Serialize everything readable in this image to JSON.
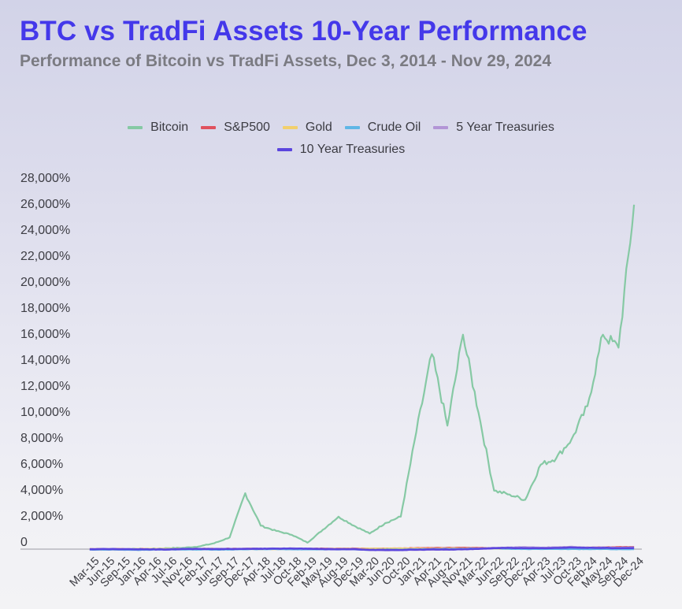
{
  "header": {
    "title": "BTC vs TradFi Assets 10-Year Performance",
    "subtitle": "Performance of Bitcoin vs TradFi Assets, Dec 3, 2014 - Nov 29, 2024"
  },
  "legend": {
    "rows": [
      [
        {
          "label": "Bitcoin",
          "color": "#86c9a4"
        },
        {
          "label": "S&P500",
          "color": "#e0515e"
        },
        {
          "label": "Gold",
          "color": "#f2cf6d"
        },
        {
          "label": "Crude Oil",
          "color": "#5fb6e6"
        },
        {
          "label": "5 Year Treasuries",
          "color": "#b295d6"
        }
      ],
      [
        {
          "label": "10 Year Treasuries",
          "color": "#5b45de"
        }
      ]
    ]
  },
  "chart_data": {
    "type": "line",
    "title": "BTC vs TradFi Assets 10-Year Performance",
    "subtitle": "Performance of Bitcoin vs TradFi Assets, Dec 3, 2014 - Nov 29, 2024",
    "xlabel": "",
    "ylabel": "",
    "ylim": [
      0,
      28000
    ],
    "y_ticks": [
      "0",
      "2,000%",
      "4,000%",
      "6,000%",
      "8,000%",
      "10,000%",
      "12,000%",
      "14,000%",
      "16,000%",
      "18,000%",
      "20,000%",
      "22,000%",
      "24,000%",
      "26,000%",
      "28,000%"
    ],
    "y_tick_values": [
      0,
      2000,
      4000,
      6000,
      8000,
      10000,
      12000,
      14000,
      16000,
      18000,
      20000,
      22000,
      24000,
      26000,
      28000
    ],
    "grid": false,
    "legend_position": "top",
    "x": [
      "Mar-15",
      "Jun-15",
      "Sep-15",
      "Jan-16",
      "Apr-16",
      "Jul-16",
      "Nov-16",
      "Feb-17",
      "Jun-17",
      "Sep-17",
      "Dec-17",
      "Apr-18",
      "Jul-18",
      "Oct-18",
      "Feb-19",
      "May-19",
      "Aug-19",
      "Dec-19",
      "Mar-20",
      "Jun-20",
      "Oct-20",
      "Jan-21",
      "Apr-21",
      "Aug-21",
      "Nov-21",
      "Mar-22",
      "Jun-22",
      "Sep-22",
      "Dec-22",
      "Apr-23",
      "Jul-23",
      "Oct-23",
      "Feb-24",
      "May-24",
      "Sep-24",
      "Dec-24"
    ],
    "series": [
      {
        "name": "Bitcoin",
        "color": "#86c9a4",
        "values": [
          -30,
          -35,
          -35,
          15,
          20,
          70,
          100,
          200,
          450,
          900,
          4300,
          1800,
          1400,
          1100,
          500,
          1500,
          2500,
          1800,
          1200,
          2000,
          2500,
          9000,
          15000,
          9500,
          16500,
          10500,
          4500,
          4200,
          3800,
          6500,
          7000,
          8500,
          11000,
          16500,
          15500,
          26500
        ]
      },
      {
        "name": "S&P500",
        "color": "#e0515e",
        "values": [
          5,
          3,
          -3,
          -5,
          2,
          5,
          8,
          15,
          20,
          25,
          30,
          28,
          32,
          25,
          28,
          35,
          40,
          45,
          15,
          40,
          55,
          70,
          85,
          95,
          105,
          90,
          70,
          65,
          70,
          85,
          100,
          95,
          120,
          135,
          150,
          165
        ]
      },
      {
        "name": "Gold",
        "color": "#f2cf6d",
        "values": [
          -5,
          -8,
          -12,
          -5,
          5,
          10,
          0,
          2,
          3,
          5,
          8,
          5,
          0,
          -2,
          5,
          8,
          25,
          25,
          30,
          40,
          45,
          40,
          35,
          40,
          40,
          55,
          45,
          35,
          45,
          55,
          50,
          55,
          65,
          90,
          110,
          115
        ]
      },
      {
        "name": "Crude Oil",
        "color": "#5fb6e6",
        "values": [
          -30,
          -35,
          -50,
          -55,
          -40,
          -35,
          -30,
          -25,
          -35,
          -25,
          -10,
          0,
          5,
          -15,
          -20,
          -10,
          -15,
          -10,
          -60,
          -40,
          -40,
          -20,
          0,
          5,
          10,
          50,
          60,
          30,
          15,
          5,
          15,
          10,
          5,
          15,
          0,
          0
        ]
      },
      {
        "name": "5 Year Treasuries",
        "color": "#b295d6",
        "values": [
          0,
          5,
          -5,
          -10,
          -15,
          -20,
          10,
          15,
          10,
          15,
          25,
          40,
          45,
          55,
          40,
          20,
          0,
          20,
          -70,
          -80,
          -75,
          -60,
          -40,
          -40,
          -20,
          40,
          100,
          120,
          150,
          110,
          140,
          180,
          120,
          130,
          100,
          140
        ]
      },
      {
        "name": "10 Year Treasuries",
        "color": "#5b45de",
        "values": [
          -10,
          5,
          -5,
          -15,
          -20,
          -30,
          10,
          15,
          5,
          10,
          15,
          30,
          35,
          45,
          25,
          5,
          -20,
          0,
          -60,
          -70,
          -65,
          -40,
          -20,
          -25,
          -10,
          20,
          70,
          90,
          80,
          70,
          90,
          120,
          90,
          100,
          70,
          90
        ]
      }
    ]
  }
}
